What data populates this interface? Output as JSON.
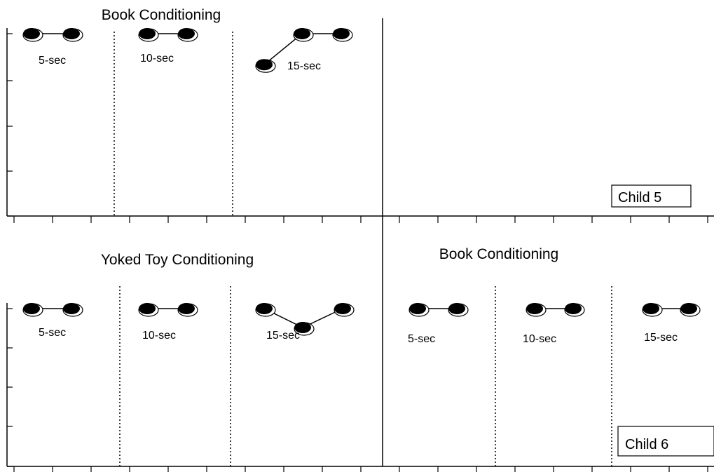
{
  "chart_data": [
    {
      "type": "line",
      "panel": "top-left",
      "title": "Book Conditioning",
      "phases": [
        {
          "label": "5-sec",
          "values": [
            100,
            100
          ]
        },
        {
          "label": "10-sec",
          "values": [
            100,
            100
          ]
        },
        {
          "label": "15-sec",
          "values": [
            83,
            100,
            100
          ]
        }
      ],
      "ylim": [
        0,
        100
      ],
      "badge": ""
    },
    {
      "type": "line",
      "panel": "top-right",
      "title": "",
      "phases": [],
      "ylim": [
        0,
        100
      ],
      "badge": "Child 5"
    },
    {
      "type": "line",
      "panel": "bottom-left",
      "title": "Yoked Toy Conditioning",
      "phases": [
        {
          "label": "5-sec",
          "values": [
            100,
            100
          ]
        },
        {
          "label": "10-sec",
          "values": [
            100,
            100
          ]
        },
        {
          "label": "15-sec",
          "values": [
            100,
            88,
            100
          ]
        }
      ],
      "ylim": [
        0,
        100
      ],
      "badge": ""
    },
    {
      "type": "line",
      "panel": "bottom-right",
      "title": "Book Conditioning",
      "phases": [
        {
          "label": "5-sec",
          "values": [
            100,
            100
          ]
        },
        {
          "label": "10-sec",
          "values": [
            100,
            100
          ]
        },
        {
          "label": "15-sec",
          "values": [
            100,
            100
          ]
        }
      ],
      "ylim": [
        0,
        100
      ],
      "badge": "Child 6"
    }
  ]
}
